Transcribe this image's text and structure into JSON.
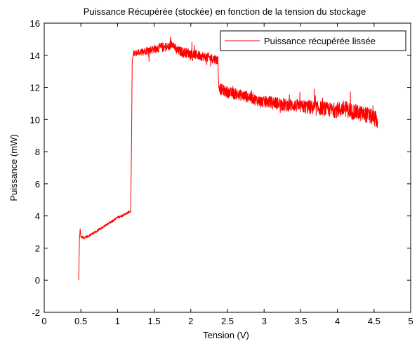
{
  "chart_data": {
    "type": "line",
    "title": "Puissance Récupérée (stockée) en fonction de la tension du stockage",
    "xlabel": "Tension (V)",
    "ylabel": "Puissance (mW)",
    "xlim": [
      0,
      5
    ],
    "ylim": [
      -2,
      16
    ],
    "xticks": [
      0,
      0.5,
      1,
      1.5,
      2,
      2.5,
      3,
      3.5,
      4,
      4.5,
      5
    ],
    "xtick_labels": [
      "0",
      "0.5",
      "1",
      "1.5",
      "2",
      "2.5",
      "3",
      "3.5",
      "4",
      "4.5",
      "5"
    ],
    "yticks": [
      -2,
      0,
      2,
      4,
      6,
      8,
      10,
      12,
      14,
      16
    ],
    "ytick_labels": [
      "-2",
      "0",
      "2",
      "4",
      "6",
      "8",
      "10",
      "12",
      "14",
      "16"
    ],
    "grid": false,
    "legend_position": "top-right",
    "series": [
      {
        "name": "Puissance récupérée lissée",
        "color": "#ff0000",
        "x": [
          0.47,
          0.48,
          0.49,
          0.5,
          0.55,
          0.6,
          0.7,
          0.8,
          0.9,
          1.0,
          1.1,
          1.18,
          1.19,
          1.2,
          1.21,
          1.22,
          1.25,
          1.3,
          1.4,
          1.5,
          1.6,
          1.7,
          1.75,
          1.8,
          1.9,
          2.0,
          2.1,
          2.2,
          2.3,
          2.37,
          2.38,
          2.4,
          2.5,
          2.6,
          2.7,
          2.8,
          2.9,
          3.0,
          3.1,
          3.2,
          3.3,
          3.4,
          3.5,
          3.6,
          3.7,
          3.8,
          3.9,
          4.0,
          4.1,
          4.2,
          4.3,
          4.4,
          4.5,
          4.55
        ],
        "y": [
          0.0,
          2.5,
          3.2,
          2.7,
          2.65,
          2.75,
          3.0,
          3.3,
          3.6,
          3.9,
          4.1,
          4.3,
          8.0,
          13.5,
          13.9,
          14.1,
          14.15,
          14.2,
          14.3,
          14.4,
          14.5,
          14.5,
          14.8,
          14.3,
          14.2,
          14.1,
          14.0,
          13.9,
          13.8,
          13.7,
          12.0,
          11.9,
          11.7,
          11.6,
          11.5,
          11.4,
          11.2,
          11.1,
          11.1,
          11.0,
          10.9,
          10.9,
          10.8,
          10.8,
          10.7,
          10.7,
          10.6,
          10.6,
          10.7,
          10.5,
          10.4,
          10.3,
          10.1,
          9.9
        ],
        "noise_amplitude": [
          0,
          0,
          0,
          0.08,
          0.08,
          0.08,
          0.08,
          0.08,
          0.08,
          0.08,
          0.08,
          0.08,
          0,
          0,
          0.2,
          0.2,
          0.2,
          0.2,
          0.25,
          0.25,
          0.3,
          0.3,
          0.3,
          0.3,
          0.3,
          0.3,
          0.3,
          0.3,
          0.3,
          0.3,
          0,
          0.35,
          0.35,
          0.35,
          0.35,
          0.35,
          0.35,
          0.35,
          0.35,
          0.4,
          0.4,
          0.4,
          0.4,
          0.45,
          0.45,
          0.45,
          0.45,
          0.5,
          0.5,
          0.5,
          0.5,
          0.5,
          0.5,
          0.5
        ]
      }
    ]
  }
}
